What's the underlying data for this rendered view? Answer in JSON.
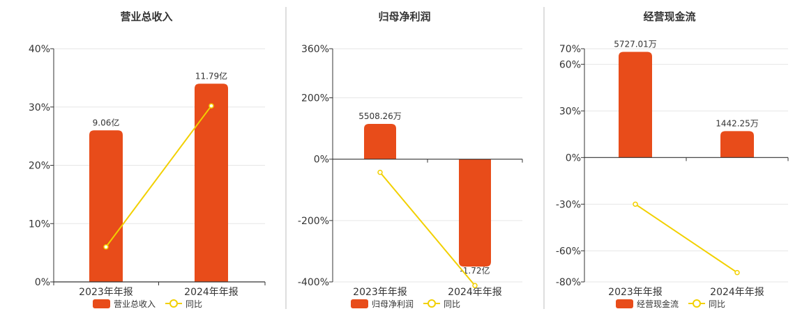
{
  "colors": {
    "bar": "#e84c1a",
    "line": "#f2d000",
    "axis": "#333333",
    "grid": "#e6e6e6",
    "divider": "#bdbdbd",
    "text": "#333333"
  },
  "chart_data": [
    {
      "type": "bar",
      "title": "营业总收入",
      "categories": [
        "2023年年报",
        "2024年年报"
      ],
      "y_ticks": [
        "40%",
        "30%",
        "20%",
        "10%",
        "0%"
      ],
      "tick_values": [
        40,
        30,
        20,
        10,
        0
      ],
      "ylim": [
        0,
        40
      ],
      "series": [
        {
          "name": "营业总收入",
          "kind": "bar",
          "values": [
            26,
            34
          ],
          "labels": [
            "9.06亿",
            "11.79亿"
          ]
        },
        {
          "name": "同比",
          "kind": "line",
          "values": [
            6,
            30.2
          ]
        }
      ],
      "legend_position": "bottom-center",
      "grid": true
    },
    {
      "type": "bar",
      "title": "归母净利润",
      "categories": [
        "2023年年报",
        "2024年年报"
      ],
      "y_ticks": [
        "360%",
        "200%",
        "0%",
        "-200%",
        "-400%"
      ],
      "tick_values": [
        360,
        200,
        0,
        -200,
        -400
      ],
      "ylim": [
        -400,
        360
      ],
      "series": [
        {
          "name": "归母净利润",
          "kind": "bar",
          "values": [
            115,
            -350
          ],
          "labels": [
            "5508.26万",
            "-1.72亿"
          ]
        },
        {
          "name": "同比",
          "kind": "line",
          "values": [
            -43,
            -412
          ]
        }
      ],
      "legend_position": "bottom-center",
      "grid": true
    },
    {
      "type": "bar",
      "title": "经营现金流",
      "categories": [
        "2023年年报",
        "2024年年报"
      ],
      "y_ticks": [
        "70%",
        "60%",
        "30%",
        "0%",
        "-30%",
        "-60%",
        "-80%"
      ],
      "tick_values": [
        70,
        60,
        30,
        0,
        -30,
        -60,
        -80
      ],
      "ylim": [
        -80,
        70
      ],
      "series": [
        {
          "name": "经营现金流",
          "kind": "bar",
          "values": [
            68,
            17
          ],
          "labels": [
            "5727.01万",
            "1442.25万"
          ]
        },
        {
          "name": "同比",
          "kind": "line",
          "values": [
            -30,
            -74
          ]
        }
      ],
      "legend_position": "bottom-center",
      "grid": true
    }
  ]
}
